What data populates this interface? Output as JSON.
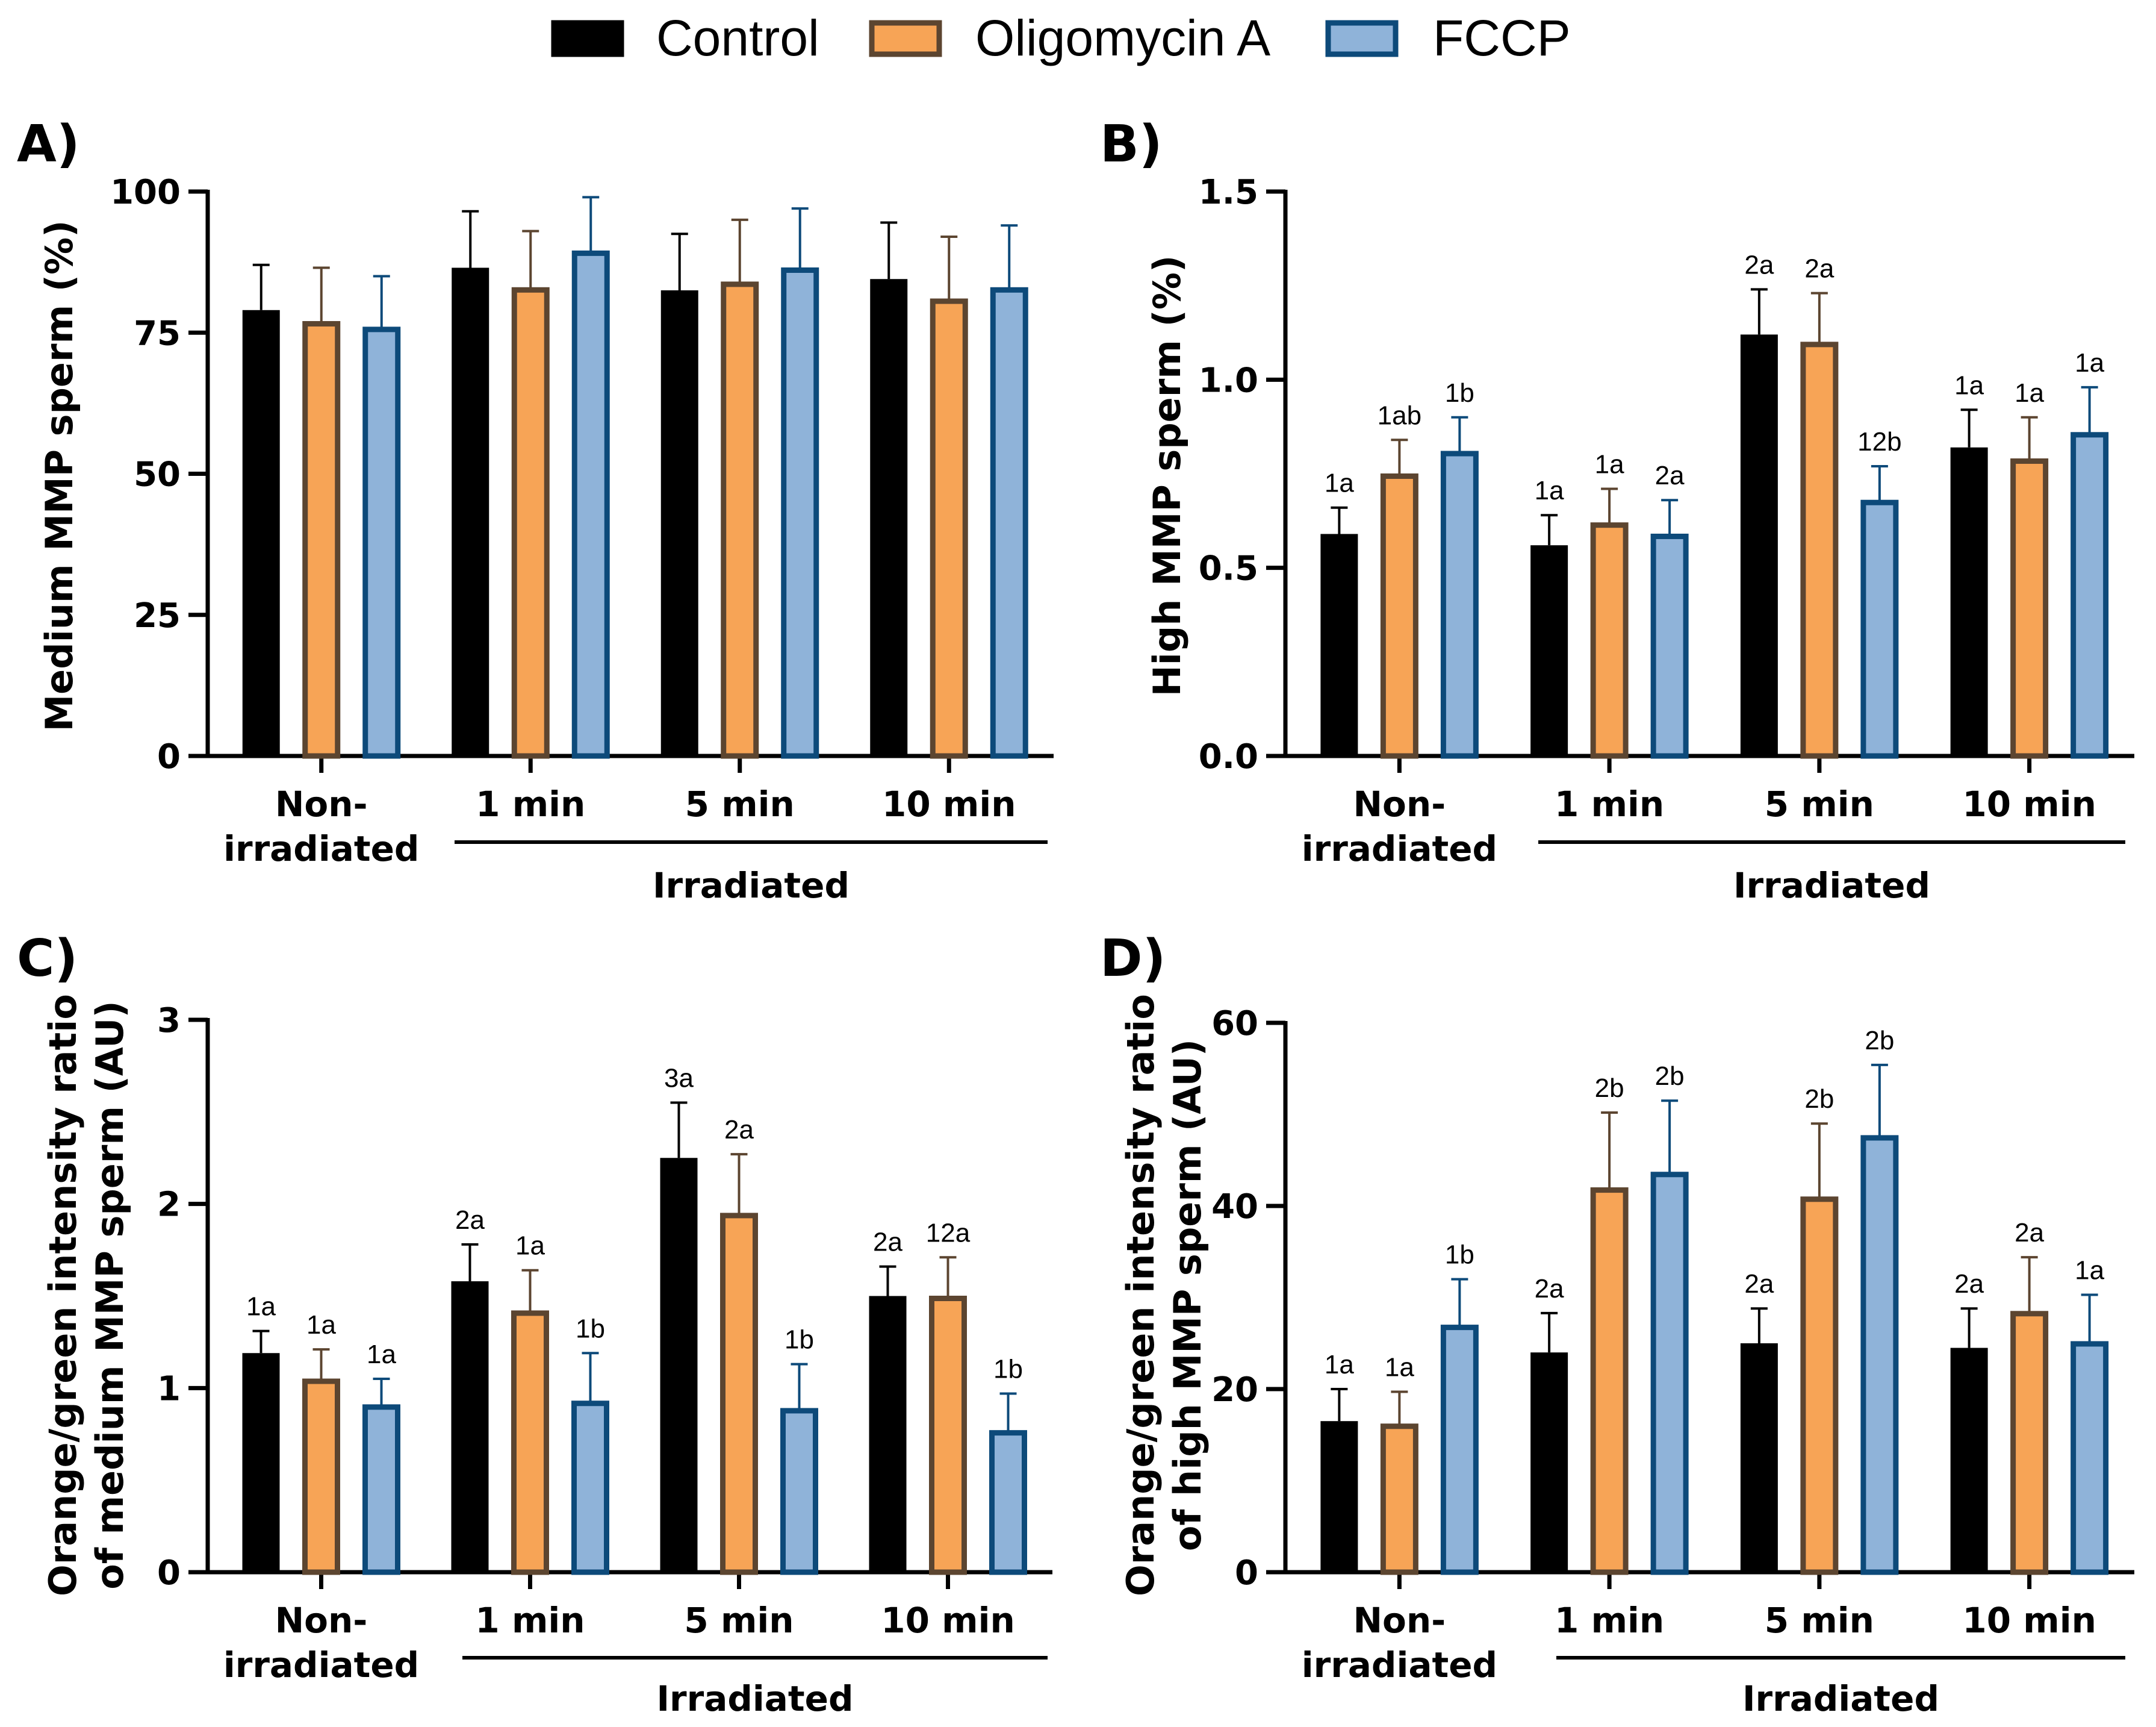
{
  "legend": {
    "series": [
      {
        "name": "Control",
        "fill": "#000000",
        "stroke": "#000000"
      },
      {
        "name": "Oligomycin A",
        "fill": "#F7A456",
        "stroke": "#5C4530"
      },
      {
        "name": "FCCP",
        "fill": "#8FB3D9",
        "stroke": "#0D4A7A"
      }
    ]
  },
  "chart_data": [
    {
      "panel": "A)",
      "type": "bar",
      "ylabel": [
        "Medium MMP sperm (%)"
      ],
      "ylim": [
        0,
        100
      ],
      "yticks": [
        "0",
        "25",
        "50",
        "75",
        "100"
      ],
      "yticks_values": [
        0,
        25,
        50,
        75,
        100
      ],
      "categories": [
        [
          "Non-",
          "irradiated"
        ],
        [
          "1 min"
        ],
        [
          "5 min"
        ],
        [
          "10 min"
        ]
      ],
      "group_label": "Irradiated",
      "series": [
        {
          "name": "Control",
          "values": [
            79,
            86.5,
            82.5,
            84.5
          ],
          "errors": [
            8,
            10,
            10,
            10
          ]
        },
        {
          "name": "Oligomycin A",
          "values": [
            77,
            83,
            84,
            81
          ],
          "errors": [
            9.5,
            10,
            11,
            11
          ]
        },
        {
          "name": "FCCP",
          "values": [
            76,
            89.5,
            86.5,
            83
          ],
          "errors": [
            9,
            9.5,
            10.5,
            11
          ]
        }
      ],
      "annotations": null
    },
    {
      "panel": "B)",
      "type": "bar",
      "ylabel": [
        "High MMP sperm (%)"
      ],
      "ylim": [
        0,
        1.5
      ],
      "yticks": [
        "0.0",
        "0.5",
        "1.0",
        "1.5"
      ],
      "yticks_values": [
        0,
        0.5,
        1.0,
        1.5
      ],
      "categories": [
        [
          "Non-",
          "irradiated"
        ],
        [
          "1 min"
        ],
        [
          "5 min"
        ],
        [
          "10 min"
        ]
      ],
      "group_label": "Irradiated",
      "series": [
        {
          "name": "Control",
          "values": [
            0.59,
            0.56,
            1.12,
            0.82
          ],
          "errors": [
            0.07,
            0.08,
            0.12,
            0.1
          ]
        },
        {
          "name": "Oligomycin A",
          "values": [
            0.75,
            0.62,
            1.1,
            0.79
          ],
          "errors": [
            0.09,
            0.09,
            0.13,
            0.11
          ]
        },
        {
          "name": "FCCP",
          "values": [
            0.81,
            0.59,
            0.68,
            0.86
          ],
          "errors": [
            0.09,
            0.09,
            0.09,
            0.12
          ]
        }
      ],
      "annotations": [
        [
          "1a",
          "1a",
          "2a",
          "1a"
        ],
        [
          "1ab",
          "1a",
          "2a",
          "1a"
        ],
        [
          "1b",
          "2a",
          "12b",
          "1a"
        ]
      ]
    },
    {
      "panel": "C)",
      "type": "bar",
      "ylabel": [
        "Orange/green intensity ratio",
        "of medium MMP sperm (AU)"
      ],
      "ylim": [
        0,
        3
      ],
      "yticks": [
        "0",
        "1",
        "2",
        "3"
      ],
      "yticks_values": [
        0,
        1,
        2,
        3
      ],
      "categories": [
        [
          "Non-",
          "irradiated"
        ],
        [
          "1 min"
        ],
        [
          "5 min"
        ],
        [
          "10 min"
        ]
      ],
      "group_label": "Irradiated",
      "series": [
        {
          "name": "Control",
          "values": [
            1.19,
            1.58,
            2.25,
            1.5
          ],
          "errors": [
            0.12,
            0.2,
            0.3,
            0.16
          ]
        },
        {
          "name": "Oligomycin A",
          "values": [
            1.05,
            1.42,
            1.95,
            1.5
          ],
          "errors": [
            0.16,
            0.22,
            0.32,
            0.21
          ]
        },
        {
          "name": "FCCP",
          "values": [
            0.91,
            0.93,
            0.89,
            0.77
          ],
          "errors": [
            0.14,
            0.26,
            0.24,
            0.2
          ]
        }
      ],
      "annotations": [
        [
          "1a",
          "2a",
          "3a",
          "2a"
        ],
        [
          "1a",
          "1a",
          "2a",
          "12a"
        ],
        [
          "1a",
          "1b",
          "1b",
          "1b"
        ]
      ]
    },
    {
      "panel": "D)",
      "type": "bar",
      "ylabel": [
        "Orange/green intensity ratio",
        "of high MMP sperm (AU)"
      ],
      "ylim": [
        0,
        60
      ],
      "yticks": [
        "0",
        "20",
        "40",
        "60"
      ],
      "yticks_values": [
        0,
        20,
        40,
        60
      ],
      "categories": [
        [
          "Non-",
          "irradiated"
        ],
        [
          "1 min"
        ],
        [
          "5 min"
        ],
        [
          "10 min"
        ]
      ],
      "group_label": "Irradiated",
      "series": [
        {
          "name": "Control",
          "values": [
            16.5,
            24,
            25,
            24.5
          ],
          "errors": [
            3.5,
            4.3,
            3.8,
            4.3
          ]
        },
        {
          "name": "Oligomycin A",
          "values": [
            16.2,
            42,
            41,
            28.5
          ],
          "errors": [
            3.5,
            8.2,
            8,
            5.9
          ]
        },
        {
          "name": "FCCP",
          "values": [
            27,
            43.7,
            47.7,
            25.2
          ],
          "errors": [
            5,
            7.8,
            7.7,
            5.1
          ]
        }
      ],
      "annotations": [
        [
          "1a",
          "2a",
          "2a",
          "2a"
        ],
        [
          "1a",
          "2b",
          "2b",
          "2a"
        ],
        [
          "1b",
          "2b",
          "2b",
          "1a"
        ]
      ]
    }
  ]
}
